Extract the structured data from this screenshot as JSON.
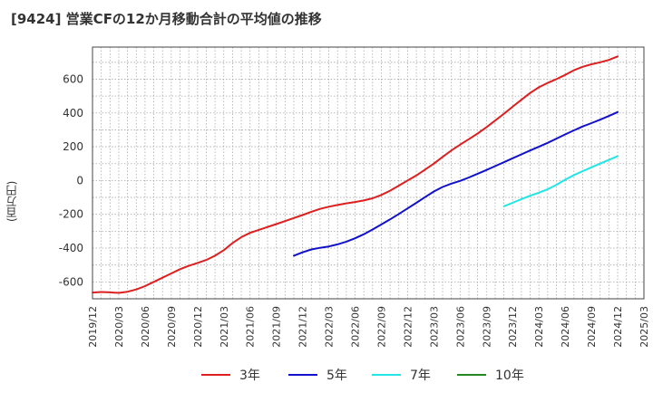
{
  "chart_data": {
    "type": "line",
    "title": "[9424]  営業CFの12か月移動合計の平均値の推移",
    "ylabel": "(百万円)",
    "xlabel": "",
    "ylim": [
      -700,
      790
    ],
    "yticks": [
      -600,
      -400,
      -200,
      0,
      200,
      400,
      600
    ],
    "xticks": [
      "2019/12",
      "2020/03",
      "2020/06",
      "2020/09",
      "2020/12",
      "2021/03",
      "2021/06",
      "2021/09",
      "2021/12",
      "2022/03",
      "2022/06",
      "2022/09",
      "2022/12",
      "2023/03",
      "2023/06",
      "2023/09",
      "2023/12",
      "2024/03",
      "2024/06",
      "2024/09",
      "2024/12",
      "2025/03"
    ],
    "grid": true,
    "legend_position": "bottom",
    "series": [
      {
        "name": "3年",
        "color": "#dd1f1f",
        "x": [
          "2019/12",
          "2020/01",
          "2020/02",
          "2020/03",
          "2020/04",
          "2020/05",
          "2020/06",
          "2020/07",
          "2020/08",
          "2020/09",
          "2020/10",
          "2020/11",
          "2020/12",
          "2021/01",
          "2021/02",
          "2021/03",
          "2021/04",
          "2021/05",
          "2021/06",
          "2021/07",
          "2021/08",
          "2021/09",
          "2021/10",
          "2021/11",
          "2021/12",
          "2022/01",
          "2022/02",
          "2022/03",
          "2022/04",
          "2022/05",
          "2022/06",
          "2022/07",
          "2022/08",
          "2022/09",
          "2022/10",
          "2022/11",
          "2022/12",
          "2023/01",
          "2023/02",
          "2023/03",
          "2023/04",
          "2023/05",
          "2023/06",
          "2023/07",
          "2023/08",
          "2023/09",
          "2023/10",
          "2023/11",
          "2023/12",
          "2024/01",
          "2024/02",
          "2024/03",
          "2024/04",
          "2024/05",
          "2024/06",
          "2024/07",
          "2024/08",
          "2024/09",
          "2024/10",
          "2024/11",
          "2024/12"
        ],
        "values": [
          -663,
          -660,
          -662,
          -665,
          -658,
          -645,
          -625,
          -600,
          -575,
          -550,
          -525,
          -505,
          -488,
          -470,
          -445,
          -412,
          -370,
          -335,
          -310,
          -292,
          -275,
          -258,
          -240,
          -222,
          -204,
          -185,
          -168,
          -155,
          -145,
          -135,
          -127,
          -118,
          -105,
          -85,
          -60,
          -30,
          0,
          30,
          65,
          100,
          140,
          178,
          212,
          245,
          278,
          315,
          355,
          395,
          437,
          478,
          518,
          552,
          578,
          600,
          625,
          653,
          673,
          688,
          700,
          714,
          735
        ]
      },
      {
        "name": "5年",
        "color": "#1111cc",
        "x": [
          "2021/11",
          "2021/12",
          "2022/01",
          "2022/02",
          "2022/03",
          "2022/04",
          "2022/05",
          "2022/06",
          "2022/07",
          "2022/08",
          "2022/09",
          "2022/10",
          "2022/11",
          "2022/12",
          "2023/01",
          "2023/02",
          "2023/03",
          "2023/04",
          "2023/05",
          "2023/06",
          "2023/07",
          "2023/08",
          "2023/09",
          "2023/10",
          "2023/11",
          "2023/12",
          "2024/01",
          "2024/02",
          "2024/03",
          "2024/04",
          "2024/05",
          "2024/06",
          "2024/07",
          "2024/08",
          "2024/09",
          "2024/10",
          "2024/11",
          "2024/12"
        ],
        "values": [
          -445,
          -425,
          -408,
          -398,
          -390,
          -378,
          -362,
          -342,
          -318,
          -290,
          -260,
          -230,
          -198,
          -165,
          -132,
          -98,
          -65,
          -38,
          -18,
          -2,
          18,
          40,
          62,
          85,
          108,
          132,
          155,
          178,
          200,
          223,
          248,
          273,
          297,
          320,
          340,
          360,
          382,
          405
        ]
      },
      {
        "name": "7年",
        "color": "#22e5e5",
        "x": [
          "2023/11",
          "2023/12",
          "2024/01",
          "2024/02",
          "2024/03",
          "2024/04",
          "2024/05",
          "2024/06",
          "2024/07",
          "2024/08",
          "2024/09",
          "2024/10",
          "2024/11",
          "2024/12"
        ],
        "values": [
          -153,
          -132,
          -110,
          -90,
          -72,
          -52,
          -25,
          5,
          32,
          55,
          78,
          100,
          122,
          144
        ]
      },
      {
        "name": "10年",
        "color": "#228822",
        "x": [],
        "values": []
      }
    ]
  }
}
